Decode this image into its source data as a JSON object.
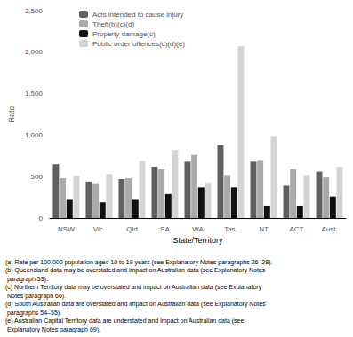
{
  "chart_data": {
    "type": "bar",
    "xlabel": "State/Territory",
    "ylabel": "Rate",
    "categories": [
      "NSW",
      "Vic.",
      "Qld",
      "SA",
      "WA",
      "Tas.",
      "NT",
      "ACT",
      "Aust."
    ],
    "series": [
      {
        "name": "Acts intended to cause injury",
        "color": "#606060",
        "values": [
          650,
          440,
          470,
          620,
          680,
          880,
          680,
          390,
          560
        ]
      },
      {
        "name": "Theft(b)(c)(d)",
        "color": "#aaaaaa",
        "values": [
          480,
          420,
          480,
          590,
          760,
          520,
          700,
          590,
          490
        ]
      },
      {
        "name": "Property damage(c)",
        "color": "#111111",
        "values": [
          230,
          190,
          230,
          290,
          370,
          370,
          150,
          150,
          260
        ]
      },
      {
        "name": "Public order offences(c)(d)(e)",
        "color": "#d4d4d4",
        "values": [
          510,
          530,
          690,
          820,
          430,
          2070,
          990,
          520,
          620
        ]
      }
    ],
    "ylim": [
      0,
      2500
    ],
    "yticks": [
      0,
      500,
      1000,
      1500,
      2000,
      2500
    ],
    "grid": false,
    "legend": "upper left",
    "annotations": [
      "(a) Rate per 100,000 population aged 10 to 19 years (see Explanatory Notes paragraphs 26–28).",
      "(b) Queensland data may be overstated and impact on Australian data (see Explanatory Notes",
      " paragraph 53).",
      "(c) Northern Territory data may be overstated and impact on Australian data (see Explanatory",
      " Notes paragraph 66).",
      "(d) South Australian data are overstated and impact on Australian data (see Explanatory Notes",
      " paragraphs 54–55).",
      "(e) Australian Capital Territory data are understated and impact on Australian data (see",
      " Explanatory Notes paragraph 69)."
    ]
  }
}
